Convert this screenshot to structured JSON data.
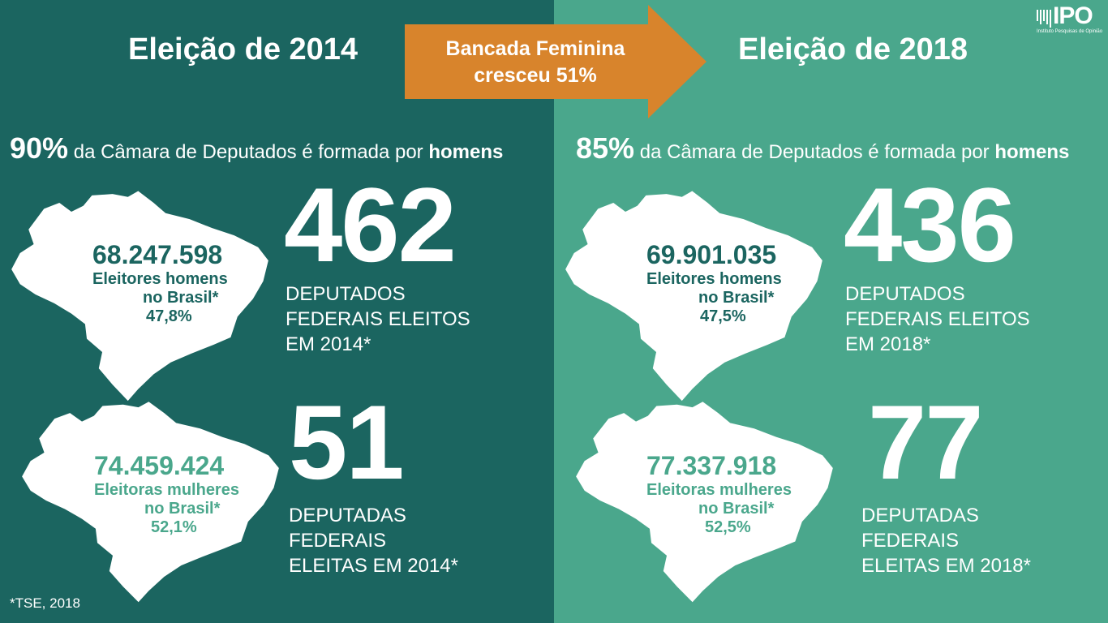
{
  "arrow": {
    "line1": "Bancada Feminina",
    "line2": "cresceu 51%"
  },
  "logo": {
    "word": "IPO",
    "subtitle": "Instituto Pesquisas de Opinião"
  },
  "footnote": "*TSE, 2018",
  "colors": {
    "left_bg": "#1b6560",
    "right_bg": "#4aa78c",
    "arrow": "#d8842c",
    "men_text": "#1b6560",
    "women_text": "#4aa78c"
  },
  "left": {
    "title": "Eleição de 2014",
    "headline": {
      "pct": "90%",
      "text": " da Câmara de Deputados é formada por ",
      "bold": "homens"
    },
    "men": {
      "count": "68.247.598",
      "label1": "Eleitores homens",
      "label2": "no Brasil*",
      "pct": "47,8%"
    },
    "men_deputies": {
      "number": "462",
      "line1": "DEPUTADOS",
      "line2": "FEDERAIS ELEITOS",
      "line3": "EM 2014*"
    },
    "women": {
      "count": "74.459.424",
      "label1": "Eleitoras mulheres",
      "label2": "no Brasil*",
      "pct": "52,1%"
    },
    "women_deputies": {
      "number": "51",
      "line1": "DEPUTADAS",
      "line2": "FEDERAIS",
      "line3": "ELEITAS EM 2014*"
    }
  },
  "right": {
    "title": "Eleição de 2018",
    "headline": {
      "pct": "85%",
      "text": " da Câmara de Deputados é formada por ",
      "bold": "homens"
    },
    "men": {
      "count": "69.901.035",
      "label1": "Eleitores homens",
      "label2": "no Brasil*",
      "pct": "47,5%"
    },
    "men_deputies": {
      "number": "436",
      "line1": "DEPUTADOS",
      "line2": "FEDERAIS ELEITOS",
      "line3": "EM 2018*"
    },
    "women": {
      "count": "77.337.918",
      "label1": "Eleitoras mulheres",
      "label2": "no Brasil*",
      "pct": "52,5%"
    },
    "women_deputies": {
      "number": "77",
      "line1": "DEPUTADAS",
      "line2": "FEDERAIS",
      "line3": "ELEITAS EM 2018*"
    }
  }
}
